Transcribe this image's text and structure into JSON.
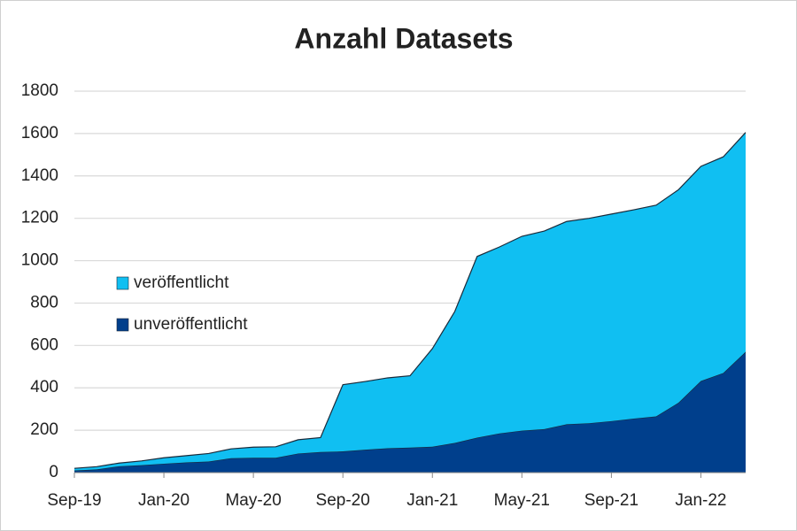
{
  "chart_data": {
    "type": "stacked_area",
    "title": "Anzahl Datasets",
    "categories": [
      "Sep-19",
      null,
      null,
      null,
      "Jan-20",
      null,
      null,
      null,
      "May-20",
      null,
      null,
      null,
      "Sep-20",
      null,
      null,
      null,
      "Jan-21",
      null,
      null,
      null,
      "May-21",
      null,
      null,
      null,
      "Sep-21",
      null,
      null,
      null,
      "Jan-22",
      null,
      null
    ],
    "series": [
      {
        "name": "unveröffentlicht",
        "color": "#003f8c",
        "values": [
          10,
          15,
          30,
          35,
          42,
          48,
          52,
          68,
          70,
          70,
          90,
          97,
          100,
          108,
          115,
          118,
          122,
          140,
          165,
          185,
          198,
          205,
          228,
          233,
          243,
          255,
          265,
          330,
          432,
          470,
          570
        ]
      },
      {
        "name": "veröffentlicht",
        "color": "#10bff2",
        "values": [
          10,
          13,
          15,
          20,
          28,
          32,
          38,
          44,
          50,
          52,
          65,
          68,
          315,
          322,
          332,
          339,
          463,
          620,
          855,
          880,
          917,
          935,
          957,
          967,
          977,
          985,
          997,
          1005,
          1013,
          1020,
          1035
        ]
      }
    ],
    "ylim": [
      0,
      1800
    ],
    "yticks": [
      0,
      200,
      400,
      600,
      800,
      1000,
      1200,
      1400,
      1600,
      1800
    ],
    "grid": true
  }
}
